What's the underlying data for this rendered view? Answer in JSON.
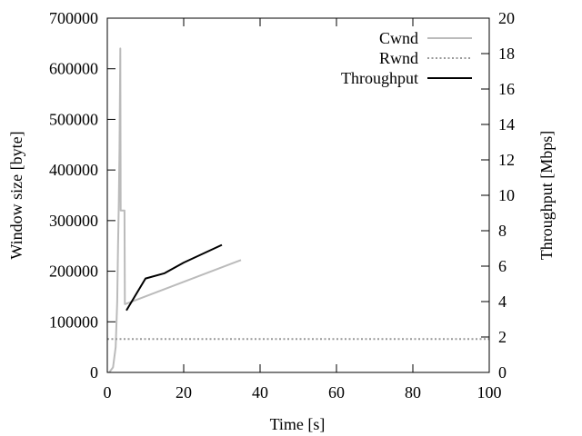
{
  "chart_data": {
    "type": "line",
    "xlabel": "Time [s]",
    "ylabel_left": "Window size [byte]",
    "ylabel_right": "Throughput [Mbps]",
    "xlim": [
      0,
      100
    ],
    "ylim_left": [
      0,
      700000
    ],
    "ylim_right": [
      0,
      20
    ],
    "x_ticks": [
      "0",
      "20",
      "40",
      "60",
      "80",
      "100"
    ],
    "y_ticks_left": [
      "0",
      "100000",
      "200000",
      "300000",
      "400000",
      "500000",
      "600000",
      "700000"
    ],
    "y_ticks_right": [
      "0",
      "2",
      "4",
      "6",
      "8",
      "10",
      "12",
      "14",
      "16",
      "18",
      "20"
    ],
    "grid": false,
    "legend_position": "top-right",
    "series": [
      {
        "name": "Cwnd",
        "axis": "left",
        "color": "#bbbbbb",
        "dash": "solid",
        "x": [
          0.5,
          1.5,
          2.2,
          2.6,
          2.8,
          3.0,
          3.2,
          3.4,
          3.5,
          3.7,
          4.5,
          4.6,
          4.7,
          35
        ],
        "y": [
          0,
          10000,
          50000,
          140000,
          250000,
          330000,
          440000,
          640000,
          320000,
          320000,
          320000,
          135000,
          135000,
          222000
        ]
      },
      {
        "name": "Rwnd",
        "axis": "left",
        "color": "#999999",
        "dash": "dotted",
        "x": [
          0,
          100
        ],
        "y": [
          66000,
          66000
        ]
      },
      {
        "name": "Throughput",
        "axis": "right",
        "color": "#000000",
        "dash": "solid",
        "x": [
          5,
          10,
          15,
          20,
          25,
          30
        ],
        "y": [
          3.5,
          5.3,
          5.6,
          6.2,
          6.7,
          7.2
        ]
      }
    ]
  }
}
